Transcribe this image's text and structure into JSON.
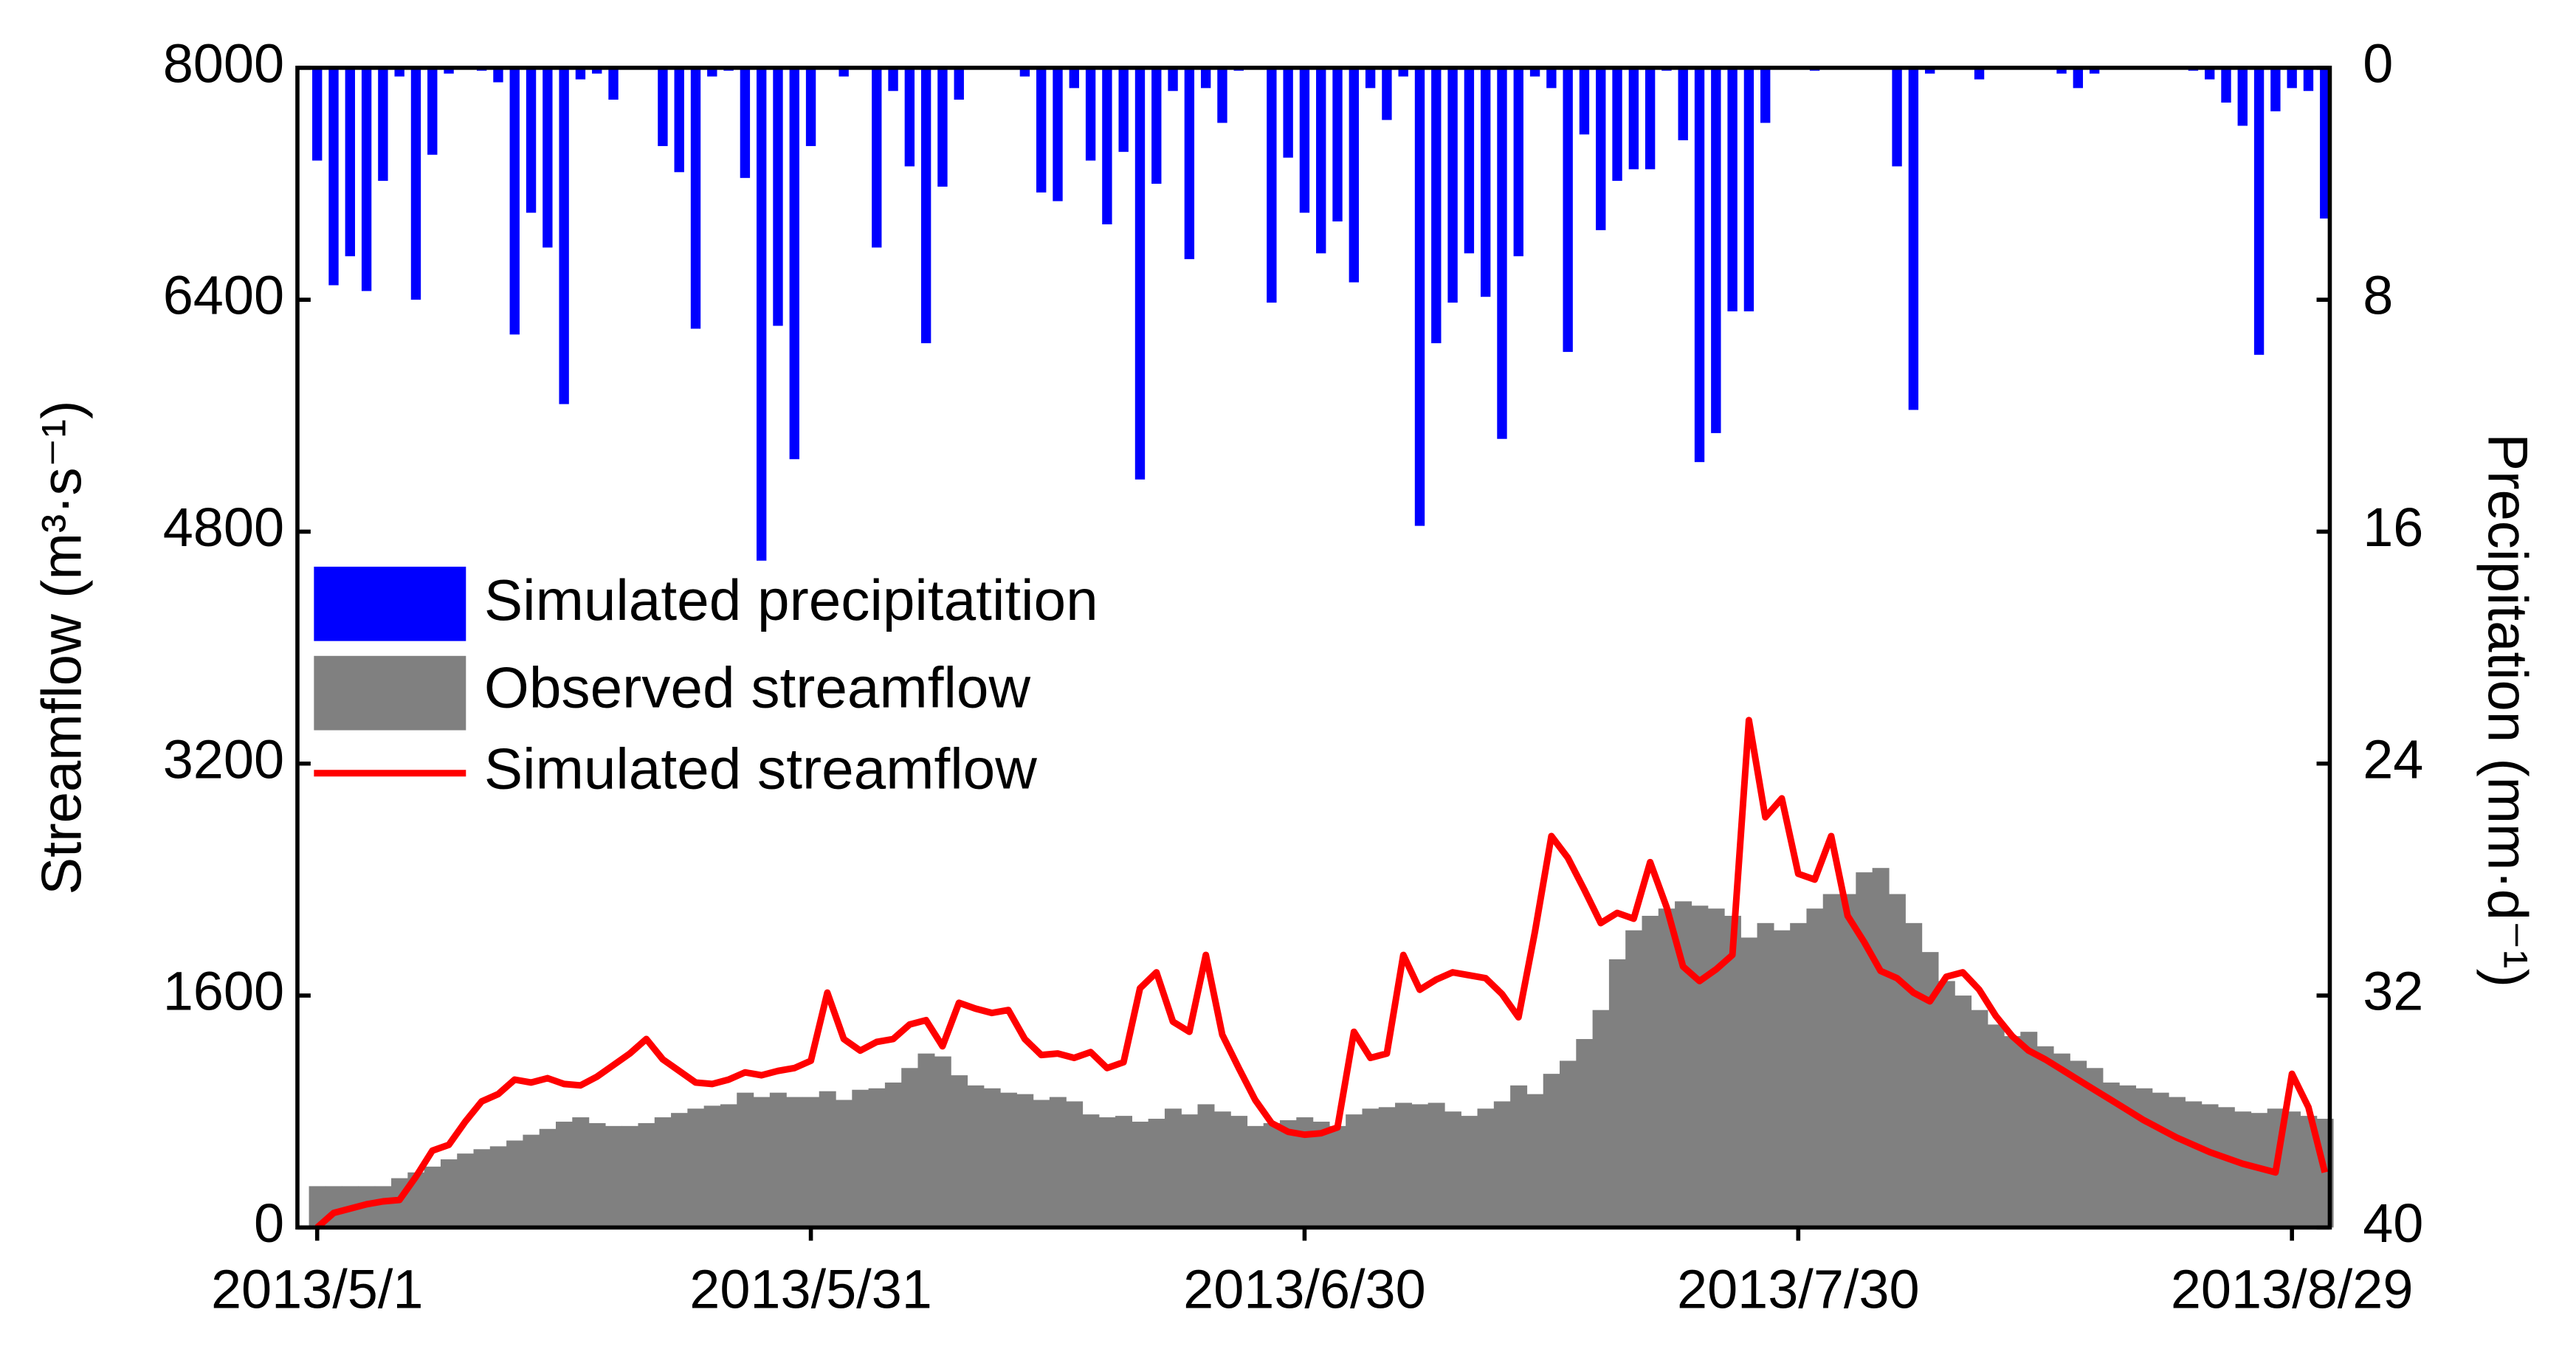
{
  "chart_data": {
    "type": "combo",
    "y_label": "Streamflow (m³·s⁻¹)",
    "y2_label": "Precipitation (mm·d⁻¹)",
    "x": [
      0,
      1,
      2,
      3,
      4,
      5,
      6,
      7,
      8,
      9,
      10,
      11,
      12,
      13,
      14,
      15,
      16,
      17,
      18,
      19,
      20,
      21,
      22,
      23,
      24,
      25,
      26,
      27,
      28,
      29,
      30,
      31,
      32,
      33,
      34,
      35,
      36,
      37,
      38,
      39,
      40,
      41,
      42,
      43,
      44,
      45,
      46,
      47,
      48,
      49,
      50,
      51,
      52,
      53,
      54,
      55,
      56,
      57,
      58,
      59,
      60,
      61,
      62,
      63,
      64,
      65,
      66,
      67,
      68,
      69,
      70,
      71,
      72,
      73,
      74,
      75,
      76,
      77,
      78,
      79,
      80,
      81,
      82,
      83,
      84,
      85,
      86,
      87,
      88,
      89,
      90,
      91,
      92,
      93,
      94,
      95,
      96,
      97,
      98,
      99,
      100,
      101,
      102,
      103,
      104,
      105,
      106,
      107,
      108,
      109,
      110,
      111,
      112,
      113,
      114,
      115,
      116,
      117,
      118,
      119,
      120,
      121,
      122
    ],
    "xlim": [
      -1.2,
      122.3
    ],
    "xticks": [
      {
        "value": 0,
        "label": "2013/5/1"
      },
      {
        "value": 30,
        "label": "2013/5/31"
      },
      {
        "value": 60,
        "label": "2013/6/30"
      },
      {
        "value": 90,
        "label": "2013/7/30"
      },
      {
        "value": 120,
        "label": "2013/8/29"
      }
    ],
    "ylim": [
      0,
      8000
    ],
    "yticks": [
      0,
      1600,
      3200,
      4800,
      6400,
      8000
    ],
    "y2lim": [
      40,
      0
    ],
    "y2ticks": [
      0,
      8,
      16,
      24,
      32,
      40
    ],
    "legend": "upper-left",
    "series": [
      {
        "name": "Simulated precipitatition",
        "type": "bar",
        "axis": "y2",
        "color": "#0000ff",
        "values": [
          3.2,
          7.5,
          6.5,
          7.7,
          3.9,
          0.3,
          8.0,
          3.0,
          0.2,
          0,
          0.1,
          0.5,
          9.2,
          5.0,
          6.2,
          11.6,
          0.4,
          0.2,
          1.1,
          0,
          0,
          2.7,
          3.6,
          9.0,
          0.3,
          0.1,
          3.8,
          17.0,
          8.9,
          13.5,
          2.7,
          0,
          0.3,
          0,
          6.2,
          0.8,
          3.4,
          9.5,
          4.1,
          1.1,
          0,
          0,
          0,
          0.3,
          4.3,
          4.6,
          0.7,
          3.2,
          5.4,
          2.9,
          14.2,
          4.0,
          0.8,
          6.6,
          0.7,
          1.9,
          0.1,
          0,
          8.1,
          3.1,
          5.0,
          6.4,
          5.3,
          7.4,
          0.7,
          1.8,
          0.3,
          15.8,
          9.5,
          8.1,
          6.4,
          7.9,
          12.8,
          6.5,
          0.3,
          0.7,
          9.8,
          2.3,
          5.6,
          3.9,
          3.5,
          3.5,
          0.1,
          2.5,
          13.6,
          12.6,
          8.4,
          8.4,
          1.9,
          0,
          0,
          0.1,
          0,
          0,
          0,
          0,
          3.4,
          11.8,
          0.2,
          0,
          0,
          0.4,
          0,
          0,
          0,
          0,
          0.2,
          0.7,
          0.2,
          0,
          0,
          0,
          0,
          0,
          0.1,
          0.4,
          1.2,
          2.0,
          9.9,
          1.5,
          0.7,
          0.8,
          5.2
        ]
      },
      {
        "name": "Observed streamflow",
        "type": "step",
        "color": "#808080",
        "values": [
          285,
          285,
          285,
          285,
          285,
          340,
          380,
          420,
          470,
          510,
          540,
          560,
          600,
          640,
          680,
          730,
          760,
          720,
          700,
          700,
          720,
          760,
          790,
          820,
          840,
          850,
          930,
          900,
          930,
          900,
          900,
          940,
          880,
          950,
          960,
          1000,
          1100,
          1200,
          1180,
          1050,
          980,
          960,
          930,
          920,
          880,
          900,
          870,
          780,
          760,
          770,
          730,
          750,
          820,
          780,
          850,
          800,
          770,
          700,
          720,
          740,
          760,
          730,
          700,
          780,
          820,
          830,
          860,
          850,
          860,
          800,
          770,
          820,
          870,
          980,
          920,
          1060,
          1150,
          1300,
          1500,
          1850,
          2050,
          2150,
          2200,
          2250,
          2220,
          2200,
          2150,
          2000,
          2100,
          2050,
          2100,
          2200,
          2300,
          2300,
          2450,
          2480,
          2300,
          2100,
          1900,
          1700,
          1600,
          1500,
          1400,
          1320,
          1350,
          1250,
          1200,
          1150,
          1100,
          1000,
          980,
          960,
          930,
          900,
          870,
          850,
          830,
          800,
          790,
          820,
          800,
          770,
          750
        ]
      },
      {
        "name": "Simulated streamflow",
        "type": "line",
        "color": "#ff0000",
        "values": [
          0,
          100,
          130,
          160,
          180,
          190,
          350,
          530,
          570,
          730,
          870,
          920,
          1020,
          1000,
          1030,
          990,
          980,
          1040,
          1120,
          1200,
          1300,
          1160,
          1080,
          1000,
          990,
          1020,
          1070,
          1050,
          1080,
          1100,
          1150,
          1620,
          1300,
          1220,
          1280,
          1300,
          1400,
          1430,
          1250,
          1550,
          1510,
          1480,
          1500,
          1300,
          1190,
          1200,
          1170,
          1210,
          1100,
          1140,
          1650,
          1760,
          1420,
          1350,
          1880,
          1330,
          1100,
          880,
          720,
          660,
          640,
          650,
          690,
          1350,
          1170,
          1200,
          1880,
          1640,
          1710,
          1760,
          1740,
          1720,
          1610,
          1450,
          2040,
          2700,
          2550,
          2330,
          2100,
          2170,
          2130,
          2520,
          2210,
          1800,
          1700,
          1780,
          1880,
          3500,
          2830,
          2960,
          2440,
          2400,
          2700,
          2150,
          1970,
          1770,
          1720,
          1620,
          1560,
          1730,
          1760,
          1640,
          1460,
          1320,
          1220,
          1160,
          1090,
          1020,
          950,
          880,
          810,
          740,
          680,
          620,
          570,
          520,
          480,
          440,
          410,
          380,
          1060,
          830,
          380
        ]
      }
    ]
  }
}
